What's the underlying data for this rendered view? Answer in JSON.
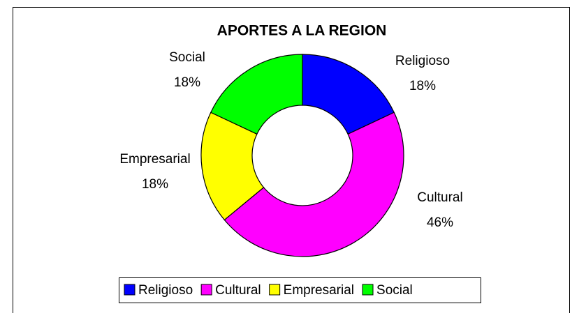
{
  "chart_data": {
    "type": "donut",
    "title": "APORTES A LA REGION",
    "categories": [
      "Religioso",
      "Cultural",
      "Empresarial",
      "Social"
    ],
    "values": [
      18,
      46,
      18,
      18
    ],
    "value_labels": [
      "18%",
      "46%",
      "18%",
      "18%"
    ],
    "colors": [
      "#0000ff",
      "#ff00ff",
      "#ffff00",
      "#00ff00"
    ],
    "legend": "bottom"
  }
}
